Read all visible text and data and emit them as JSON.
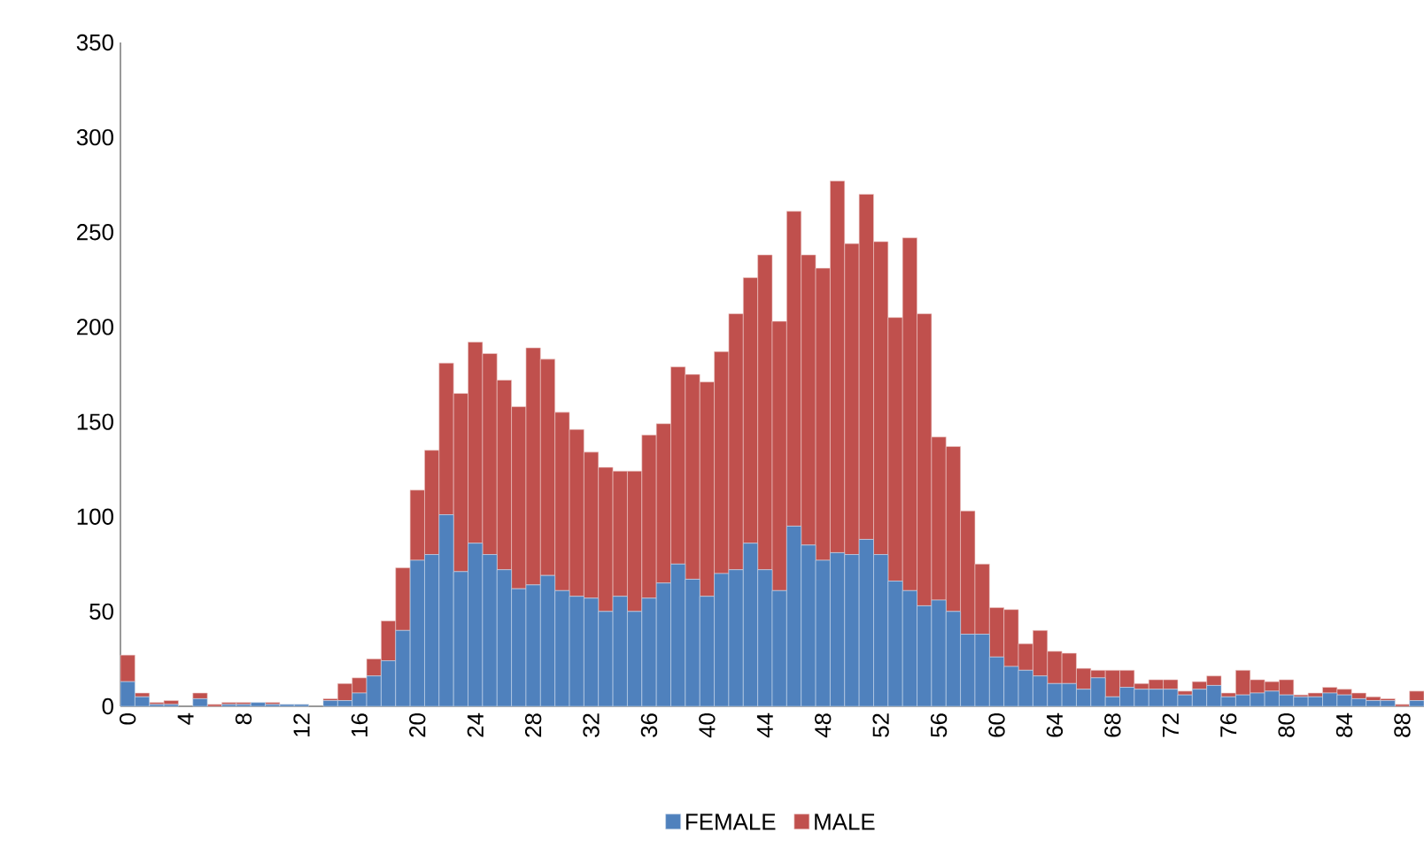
{
  "chart_data": {
    "type": "bar",
    "stacked": true,
    "legend": "bottom",
    "categories": [
      "0",
      null,
      null,
      null,
      "4",
      null,
      null,
      null,
      "8",
      null,
      null,
      null,
      "12",
      null,
      null,
      null,
      "16",
      null,
      null,
      null,
      "20",
      null,
      null,
      null,
      "24",
      null,
      null,
      null,
      "28",
      null,
      null,
      null,
      "32",
      null,
      null,
      null,
      "36",
      null,
      null,
      null,
      "40",
      null,
      null,
      null,
      "44",
      null,
      null,
      null,
      "48",
      null,
      null,
      null,
      "52",
      null,
      null,
      null,
      "56",
      null,
      null,
      null,
      "60",
      null,
      null,
      null,
      "64",
      null,
      null,
      null,
      "68",
      null,
      null,
      null,
      "72",
      null,
      null,
      null,
      "76",
      null,
      null,
      null,
      "80",
      null,
      null,
      null,
      "84",
      null,
      null,
      null,
      "88",
      null
    ],
    "series": [
      {
        "name": "FEMALE",
        "color": "#4f81bd",
        "values": [
          13,
          5,
          1,
          1,
          0,
          4,
          0,
          1,
          1,
          2,
          1,
          1,
          1,
          0,
          3,
          3,
          7,
          16,
          24,
          40,
          77,
          80,
          101,
          71,
          86,
          80,
          72,
          62,
          64,
          69,
          61,
          58,
          57,
          50,
          58,
          50,
          57,
          65,
          75,
          67,
          58,
          70,
          72,
          86,
          72,
          61,
          95,
          85,
          77,
          81,
          80,
          88,
          80,
          66,
          61,
          53,
          56,
          50,
          38,
          38,
          26,
          21,
          19,
          16,
          12,
          12,
          9,
          15,
          5,
          10,
          9,
          9,
          9,
          6,
          9,
          11,
          5,
          6,
          7,
          8,
          6,
          5,
          5,
          7,
          6,
          4,
          3,
          3,
          0,
          3
        ]
      },
      {
        "name": "MALE",
        "color": "#c0504d",
        "values": [
          14,
          2,
          1,
          2,
          0,
          3,
          1,
          1,
          1,
          0,
          1,
          0,
          0,
          0,
          1,
          9,
          8,
          9,
          21,
          33,
          37,
          55,
          80,
          94,
          106,
          106,
          100,
          96,
          125,
          114,
          94,
          88,
          77,
          76,
          66,
          74,
          86,
          84,
          104,
          108,
          113,
          117,
          135,
          140,
          166,
          142,
          166,
          153,
          154,
          196,
          164,
          182,
          165,
          139,
          186,
          154,
          86,
          87,
          65,
          37,
          26,
          30,
          14,
          24,
          17,
          16,
          11,
          4,
          14,
          9,
          3,
          5,
          5,
          2,
          4,
          5,
          2,
          13,
          7,
          5,
          8,
          1,
          2,
          3,
          3,
          3,
          2,
          1,
          1,
          5
        ]
      }
    ],
    "ylim": [
      0,
      350
    ],
    "yticks": [
      0,
      50,
      100,
      150,
      200,
      250,
      300,
      350
    ]
  }
}
